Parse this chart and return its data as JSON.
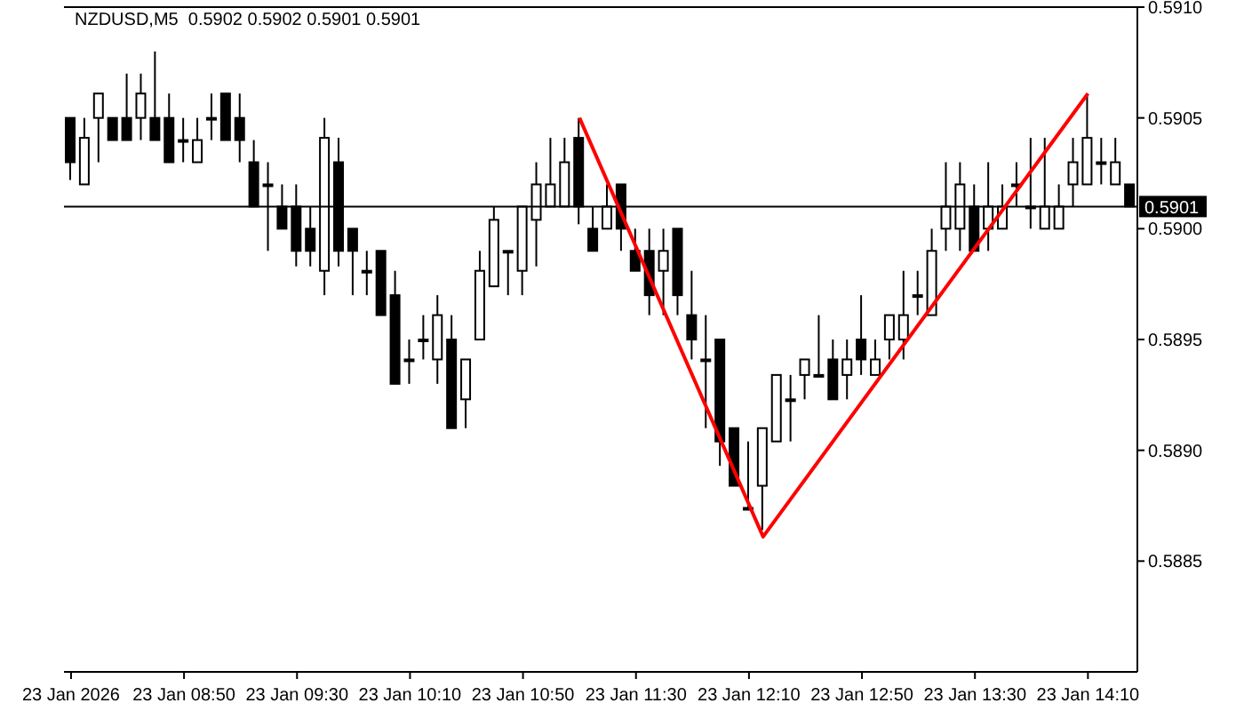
{
  "chart_data": {
    "type": "candlestick",
    "title": "NZDUSD,M5  0.5902 0.5902 0.5901 0.5901",
    "color": "#000000",
    "categories": [
      "23 Jan 2026",
      null,
      null,
      null,
      null,
      null,
      null,
      null,
      "23 Jan 08:50",
      null,
      null,
      null,
      null,
      null,
      null,
      null,
      "23 Jan 09:30",
      null,
      null,
      null,
      null,
      null,
      null,
      null,
      "23 Jan 10:10",
      null,
      null,
      null,
      null,
      null,
      null,
      null,
      "23 Jan 10:50",
      null,
      null,
      null,
      null,
      null,
      null,
      null,
      "23 Jan 11:30",
      null,
      null,
      null,
      null,
      null,
      null,
      null,
      "23 Jan 12:10",
      null,
      null,
      null,
      null,
      null,
      null,
      null,
      "23 Jan 12:50",
      null,
      null,
      null,
      null,
      null,
      null,
      null,
      "23 Jan 13:30",
      null,
      null,
      null,
      null,
      null,
      null,
      null,
      "23 Jan 14:10",
      null,
      null,
      null
    ],
    "ohlc": [
      [
        0.5905,
        0.5905,
        0.59022,
        0.5903
      ],
      [
        0.5902,
        0.5905,
        0.5902,
        0.59041
      ],
      [
        0.5905,
        0.59061,
        0.5903,
        0.59061
      ],
      [
        0.5905,
        0.5905,
        0.5904,
        0.5904
      ],
      [
        0.5905,
        0.5907,
        0.5904,
        0.5904
      ],
      [
        0.5905,
        0.5907,
        0.5904,
        0.59061
      ],
      [
        0.5905,
        0.5908,
        0.5904,
        0.5904
      ],
      [
        0.5905,
        0.59061,
        0.5903,
        0.5903
      ],
      [
        0.5904,
        0.5905,
        0.5903,
        0.5904
      ],
      [
        0.5903,
        0.5905,
        0.5903,
        0.5904
      ],
      [
        0.5905,
        0.59061,
        0.5904,
        0.5905
      ],
      [
        0.59061,
        0.59061,
        0.5904,
        0.5904
      ],
      [
        0.5905,
        0.59061,
        0.5903,
        0.5904
      ],
      [
        0.5903,
        0.5904,
        0.5901,
        0.5901
      ],
      [
        0.5902,
        0.5903,
        0.5899,
        0.5902
      ],
      [
        0.5901,
        0.5902,
        0.59,
        0.59
      ],
      [
        0.5901,
        0.5902,
        0.58983,
        0.5899
      ],
      [
        0.59,
        0.5901,
        0.58983,
        0.5899
      ],
      [
        0.58981,
        0.5905,
        0.5897,
        0.59041
      ],
      [
        0.5903,
        0.59041,
        0.58983,
        0.5899
      ],
      [
        0.59,
        0.59,
        0.5897,
        0.5899
      ],
      [
        0.58981,
        0.5899,
        0.5897,
        0.58981
      ],
      [
        0.5899,
        0.5899,
        0.58961,
        0.58961
      ],
      [
        0.5897,
        0.58981,
        0.5893,
        0.5893
      ],
      [
        0.58941,
        0.5895,
        0.5893,
        0.58941
      ],
      [
        0.5895,
        0.58961,
        0.58941,
        0.5895
      ],
      [
        0.58941,
        0.5897,
        0.5893,
        0.58961
      ],
      [
        0.5895,
        0.58961,
        0.5891,
        0.5891
      ],
      [
        0.58923,
        0.58941,
        0.5891,
        0.58941
      ],
      [
        0.5895,
        0.5899,
        0.5895,
        0.58981
      ],
      [
        0.58974,
        0.5901,
        0.58974,
        0.59004
      ],
      [
        0.5899,
        0.5899,
        0.5897,
        0.5899
      ],
      [
        0.58981,
        0.5901,
        0.5897,
        0.5901
      ],
      [
        0.59004,
        0.5903,
        0.58983,
        0.5902
      ],
      [
        0.5901,
        0.59041,
        0.5901,
        0.5902
      ],
      [
        0.5901,
        0.59041,
        0.5901,
        0.5903
      ],
      [
        0.59041,
        0.5905,
        0.59002,
        0.5901
      ],
      [
        0.59,
        0.5901,
        0.5899,
        0.5899
      ],
      [
        0.59,
        0.5902,
        0.59,
        0.5901
      ],
      [
        0.5902,
        0.5902,
        0.5899,
        0.59
      ],
      [
        0.5899,
        0.59,
        0.58981,
        0.58981
      ],
      [
        0.5899,
        0.59,
        0.58961,
        0.5897
      ],
      [
        0.58981,
        0.59,
        0.58961,
        0.5899
      ],
      [
        0.59,
        0.59,
        0.58961,
        0.5897
      ],
      [
        0.58961,
        0.58981,
        0.58941,
        0.5895
      ],
      [
        0.58941,
        0.58961,
        0.5891,
        0.58941
      ],
      [
        0.5895,
        0.5895,
        0.58893,
        0.58904
      ],
      [
        0.5891,
        0.5891,
        0.58884,
        0.58884
      ],
      [
        0.58874,
        0.58904,
        0.58874,
        0.58874
      ],
      [
        0.58884,
        0.5891,
        0.58864,
        0.5891
      ],
      [
        0.58904,
        0.58934,
        0.58904,
        0.58934
      ],
      [
        0.58923,
        0.58934,
        0.58904,
        0.58923
      ],
      [
        0.58934,
        0.58941,
        0.58923,
        0.58941
      ],
      [
        0.58934,
        0.58961,
        0.58934,
        0.58934
      ],
      [
        0.58941,
        0.5895,
        0.58923,
        0.58923
      ],
      [
        0.58934,
        0.5895,
        0.58923,
        0.58941
      ],
      [
        0.5895,
        0.5897,
        0.58934,
        0.58941
      ],
      [
        0.58934,
        0.5895,
        0.58934,
        0.58941
      ],
      [
        0.5895,
        0.58961,
        0.58941,
        0.58961
      ],
      [
        0.5895,
        0.58981,
        0.58941,
        0.58961
      ],
      [
        0.5897,
        0.58981,
        0.58961,
        0.5897
      ],
      [
        0.58961,
        0.59,
        0.58961,
        0.5899
      ],
      [
        0.59,
        0.5903,
        0.5899,
        0.5901
      ],
      [
        0.59,
        0.5903,
        0.5899,
        0.5902
      ],
      [
        0.5901,
        0.5902,
        0.5899,
        0.5899
      ],
      [
        0.59,
        0.5903,
        0.5899,
        0.5901
      ],
      [
        0.59,
        0.5902,
        0.59,
        0.5901
      ],
      [
        0.5902,
        0.5903,
        0.5901,
        0.5902
      ],
      [
        0.5901,
        0.59041,
        0.59,
        0.5901
      ],
      [
        0.59,
        0.59041,
        0.59,
        0.5901
      ],
      [
        0.59,
        0.5902,
        0.59,
        0.5901
      ],
      [
        0.5902,
        0.59041,
        0.5901,
        0.5903
      ],
      [
        0.5902,
        0.59061,
        0.5902,
        0.59041
      ],
      [
        0.5903,
        0.59041,
        0.5902,
        0.5903
      ],
      [
        0.5902,
        0.59041,
        0.5902,
        0.5903
      ],
      [
        0.5902,
        0.5902,
        0.5901,
        0.5901
      ]
    ],
    "series": [
      {
        "type": "line",
        "color": "#ff0000",
        "values": [
          null,
          null,
          null,
          null,
          null,
          null,
          null,
          null,
          null,
          null,
          null,
          null,
          null,
          null,
          null,
          null,
          null,
          null,
          null,
          null,
          null,
          null,
          null,
          null,
          null,
          null,
          null,
          null,
          null,
          null,
          null,
          null,
          null,
          null,
          null,
          null,
          0.5905,
          null,
          null,
          null,
          null,
          null,
          null,
          null,
          null,
          null,
          null,
          null,
          null,
          0.58861,
          null,
          null,
          null,
          null,
          null,
          null,
          null,
          null,
          null,
          null,
          null,
          null,
          null,
          null,
          null,
          null,
          null,
          null,
          null,
          null,
          null,
          null,
          0.59061,
          null,
          null,
          null
        ]
      }
    ],
    "ylim": [
      0.588,
      0.591
    ],
    "yticks": [
      {
        "value": 0.5885,
        "label": "0.5885"
      },
      {
        "value": 0.589,
        "label": "0.5890"
      },
      {
        "value": 0.5895,
        "label": "0.5895"
      },
      {
        "value": 0.59,
        "label": "0.5900"
      },
      {
        "value": 0.5905,
        "label": "0.5905"
      },
      {
        "value": 0.591,
        "label": "0.5910"
      }
    ],
    "ref_lines": [
      {
        "axis": "y",
        "value": 0.5901,
        "label": "0.5901",
        "color": "#000000"
      }
    ]
  }
}
